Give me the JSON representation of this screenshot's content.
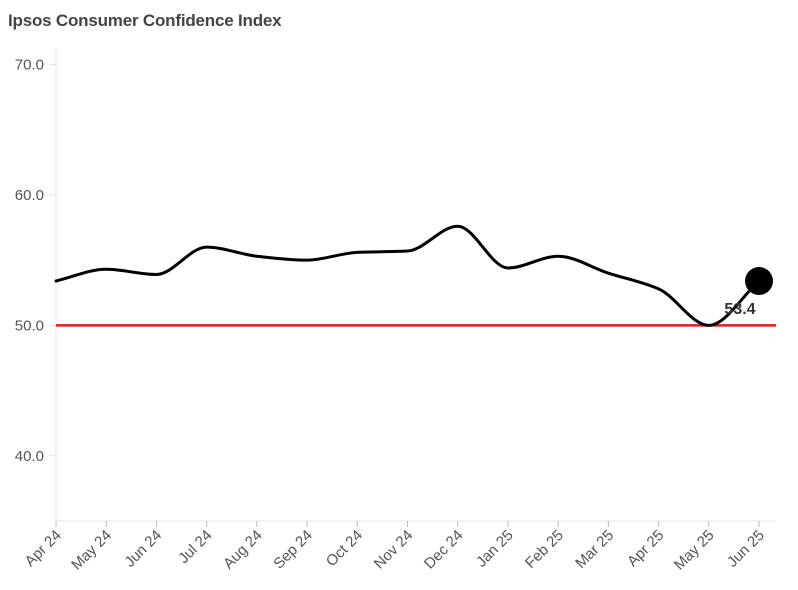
{
  "chart_data": {
    "type": "line",
    "title": "Ipsos Consumer Confidence Index",
    "categories": [
      "Apr 24",
      "May 24",
      "Jun 24",
      "Jul 24",
      "Aug 24",
      "Sep 24",
      "Oct 24",
      "Nov 24",
      "Dec 24",
      "Jan 25",
      "Feb 25",
      "Mar 25",
      "Apr 25",
      "May 25",
      "Jun 25"
    ],
    "series": [
      {
        "values": [
          53.4,
          54.3,
          53.9,
          56.0,
          55.3,
          55.0,
          55.6,
          55.7,
          57.6,
          54.4,
          55.3,
          54.0,
          52.8,
          50.0,
          53.4
        ]
      }
    ],
    "ylim": [
      35.0,
      70.0
    ],
    "yticks": [
      "70.0",
      "60.0",
      "50.0",
      "40.0"
    ],
    "reference_line": {
      "value": 50.0,
      "color": "#e8161b"
    },
    "line_color": "#000000",
    "last_point_label": "53.4",
    "grid": false
  }
}
